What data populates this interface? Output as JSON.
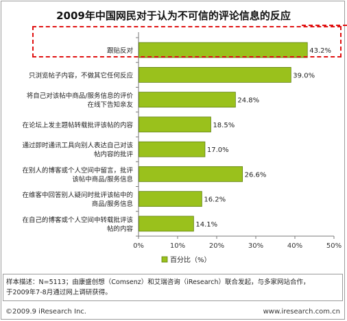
{
  "title": "2009年中国网民对于认为不可信的评论信息的反应",
  "chart_data": {
    "type": "bar",
    "orientation": "horizontal",
    "categories": [
      [
        "跟贴反对"
      ],
      [
        "只浏览帖子内容，不做其它任何反应"
      ],
      [
        "将自己对该帖中商品/服务信息的评价",
        "在线下告知亲友"
      ],
      [
        "在论坛上发主题帖转载批评该帖的内容"
      ],
      [
        "通过即时通讯工具向别人表达自己对该",
        "帖内容的批评"
      ],
      [
        "在别人的博客或个人空间中留言，批评",
        "该帖中商品/服务信息"
      ],
      [
        "在维客中回答别人疑问时批评该帖中的",
        "商品/服务信息"
      ],
      [
        "在自己的博客或个人空间中转载批评该",
        "帖的内容"
      ]
    ],
    "series": [
      {
        "name": "百分比（%）",
        "values": [
          43.2,
          39.0,
          24.8,
          18.5,
          17.0,
          26.6,
          16.2,
          14.1
        ],
        "labels": [
          "43.2%",
          "39.0%",
          "24.8%",
          "18.5%",
          "17.0%",
          "26.6%",
          "16.2%",
          "14.1%"
        ]
      }
    ],
    "xlim": [
      0,
      50
    ],
    "xticks": [
      "0%",
      "10%",
      "20%",
      "30%",
      "40%",
      "50%"
    ],
    "xtick_values": [
      0,
      10,
      20,
      30,
      40,
      50
    ],
    "grid": false,
    "legend": "bottom",
    "highlight_index": 0,
    "colors": {
      "bar": "#9ac11c",
      "bar_edge": "#5f7f10",
      "highlight": "#e01010"
    }
  },
  "note": {
    "line1": "样本描述：N=5113；由康盛创想（Comsenz）和艾瑞咨询（iResearch）联合发起，与多家网站合作，",
    "line2": "于2009年7-8月通过网上调研获得。"
  },
  "footer": {
    "left": "©2009.9 iResearch Inc.",
    "right": "www.iresearch.com.cn"
  }
}
